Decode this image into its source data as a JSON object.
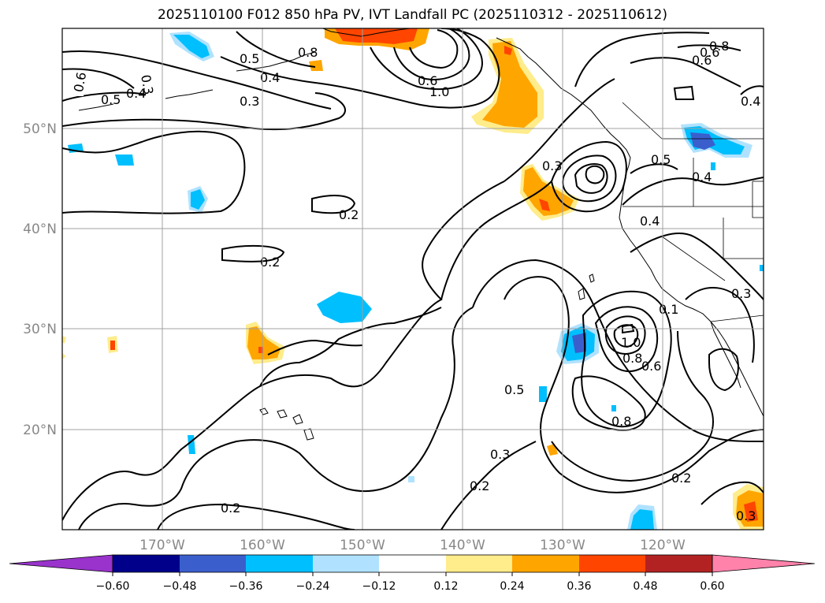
{
  "title": "2025110100 F012 850 hPa PV, IVT Landfall PC (2025110312 - 2025110612)",
  "map": {
    "lat_labels": [
      "50°N",
      "40°N",
      "30°N",
      "20°N"
    ],
    "lon_labels": [
      "170°W",
      "160°W",
      "150°W",
      "140°W",
      "130°W",
      "120°W"
    ],
    "contour_labels": [
      "0.6",
      "0.5",
      "0.4",
      "0.3",
      "0.5",
      "0.4",
      "0.3",
      "0.8",
      "0.6",
      "1.0",
      "0.8",
      "0.6",
      "0.4",
      "0.6",
      "0.5",
      "0.4",
      "0.4",
      "0.2",
      "0.2",
      "0.3",
      "0.1",
      "0.3",
      "1.0",
      "0.8",
      "0.6",
      "0.5",
      "0.8",
      "0.3",
      "0.2",
      "0.2",
      "0.2",
      "0.3"
    ]
  },
  "colorbar": {
    "ticks": [
      "−0.60",
      "−0.48",
      "−0.36",
      "−0.24",
      "−0.12",
      "0.12",
      "0.24",
      "0.36",
      "0.48",
      "0.60"
    ],
    "colors": [
      "#9933cc",
      "#00008b",
      "#3a5fcd",
      "#00bfff",
      "#b0e2ff",
      "#ffffff",
      "#ffec8b",
      "#ffa500",
      "#ff4500",
      "#b22222",
      "#ff82ab"
    ]
  },
  "chart_data": {
    "type": "heatmap",
    "title": "2025110100 F012 850 hPa PV, IVT Landfall PC (2025110312 - 2025110612)",
    "colorbar_levels": [
      -0.6,
      -0.48,
      -0.36,
      -0.24,
      -0.12,
      0.12,
      0.24,
      0.36,
      0.48,
      0.6
    ],
    "colorbar_colors": [
      "#9933cc",
      "#00008b",
      "#3a5fcd",
      "#00bfff",
      "#b0e2ff",
      "#ffffff",
      "#ffec8b",
      "#ffa500",
      "#ff4500",
      "#b22222",
      "#ff82ab"
    ],
    "colorbar_extend": "both",
    "longitude_ticks": [
      -170,
      -160,
      -150,
      -140,
      -130,
      -120
    ],
    "latitude_ticks": [
      50,
      40,
      30,
      20
    ],
    "contour_levels_labeled": [
      0.1,
      0.2,
      0.3,
      0.4,
      0.5,
      0.6,
      0.8,
      1.0
    ],
    "grid": true
  }
}
